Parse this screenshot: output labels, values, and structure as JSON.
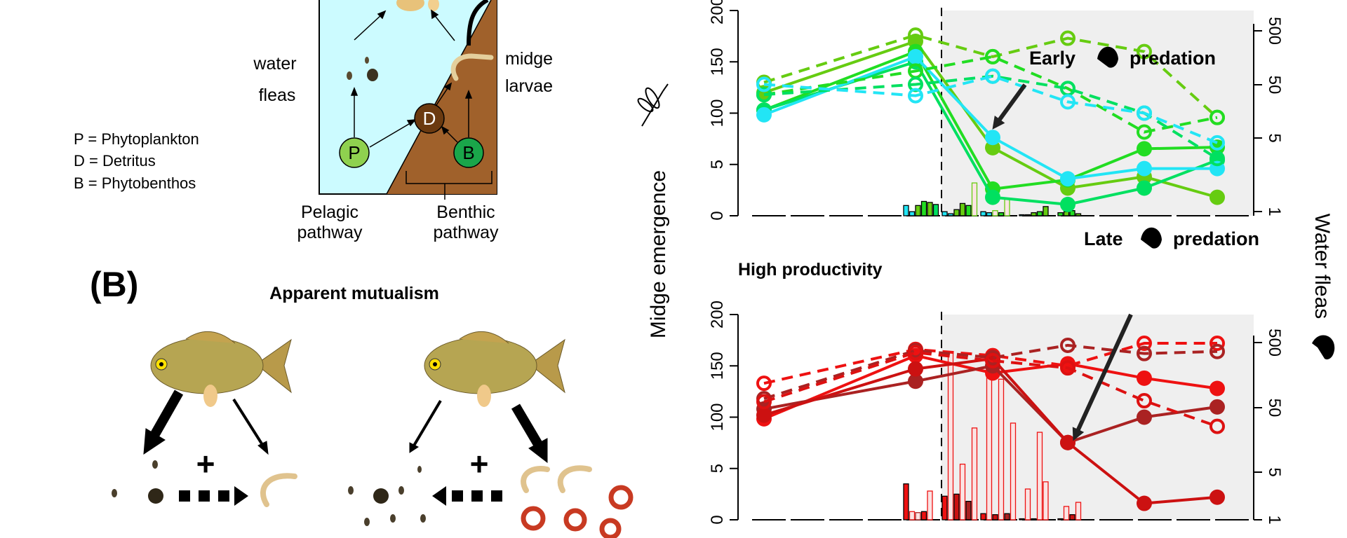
{
  "panel_a": {
    "water_fleas_label": [
      "water",
      "fleas"
    ],
    "midge_larvae_label": [
      "midge",
      "larvae"
    ],
    "legend": [
      "P = Phytoplankton",
      "D = Detritus",
      "B = Phytobenthos"
    ],
    "nodes": {
      "p": "P",
      "d": "D",
      "b": "B"
    },
    "node_colors": {
      "p": "#8fd14f",
      "d": "#6b3a10",
      "b": "#1aa64a"
    },
    "pelagic_label": [
      "Pelagic",
      "pathway"
    ],
    "benthic_label": [
      "Benthic",
      "pathway"
    ],
    "water_color": "#ccfbff",
    "sediment_color": "#a0612b"
  },
  "panel_b": {
    "label": "(B)",
    "title": "Apparent mutualism",
    "plus": "+"
  },
  "chart_data": [
    {
      "type": "line",
      "title": "",
      "ylabel": "Midge emergence",
      "y2label": "Water fleas",
      "yticks": [
        "0",
        "5",
        "100",
        "150",
        "200"
      ],
      "y2ticks": [
        "1",
        "5",
        "50",
        "500"
      ],
      "annotation": {
        "left": "Early",
        "right": "predation"
      },
      "shaded_period": "predation",
      "series": [
        {
          "color": "#66cc11",
          "style": "solid",
          "marker": "filled",
          "values": [
            120,
            170,
            36,
            2.7,
            3.8,
            1.8
          ]
        },
        {
          "color": "#22dd22",
          "style": "solid",
          "marker": "filled",
          "values": [
            103,
            160,
            2.6,
            3.5,
            34,
            37
          ]
        },
        {
          "color": "#00e060",
          "style": "solid",
          "marker": "filled",
          "values": [
            103,
            150,
            1.8,
            1.1,
            2.7,
            13
          ]
        },
        {
          "color": "#22e5f5",
          "style": "solid",
          "marker": "filled",
          "values": [
            97,
            155,
            55,
            3.6,
            4.6,
            4.6
          ]
        },
        {
          "color": "#66cc11",
          "style": "dashed",
          "marker": "open",
          "values": [
            130,
            176,
            155,
            173,
            160,
            92
          ]
        },
        {
          "color": "#22dd22",
          "style": "dashed",
          "marker": "open",
          "values": [
            118,
            141,
            155,
            124,
            65,
            92
          ]
        },
        {
          "color": "#00e060",
          "style": "dashed",
          "marker": "open",
          "values": [
            118,
            128,
            136,
            124,
            100,
            16
          ]
        },
        {
          "color": "#22e5f5",
          "style": "dashed",
          "marker": "open",
          "values": [
            128,
            117,
            136,
            111,
            100,
            45
          ]
        }
      ],
      "bars": [
        [
          {
            "v": 1.0,
            "c": "#22e5f5"
          },
          {
            "v": 0.4,
            "c": "#22e5f5"
          },
          {
            "v": 1.0,
            "c": "#66cc11"
          },
          {
            "v": 1.4,
            "c": "#22dd22"
          },
          {
            "v": 1.3,
            "c": "#66cc11"
          },
          {
            "v": 1.1,
            "c": "#00e060"
          }
        ],
        [
          {
            "v": 0.4,
            "c": "#22e5f5"
          },
          {
            "v": 0.2,
            "c": "#22e5f5"
          },
          {
            "v": 0.6,
            "c": "#66cc11"
          },
          {
            "v": 1.2,
            "c": "#66cc11"
          },
          {
            "v": 1.0,
            "c": "#22dd22"
          },
          {
            "v": 3.2,
            "c": "#66cc11",
            "hatched": true
          }
        ],
        [
          {
            "v": 0.4,
            "c": "#22e5f5"
          },
          {
            "v": 0.3,
            "c": "#22e5f5"
          },
          {
            "v": 0.5,
            "c": "#66cc11",
            "hatched": true
          },
          {
            "v": 0.3,
            "c": "#22dd22"
          },
          {
            "v": 1.6,
            "c": "#66cc11",
            "hatched": true
          }
        ],
        [
          {
            "v": 0.1,
            "c": "#22e5f5"
          },
          {
            "v": 0.1,
            "c": "#22dd22"
          },
          {
            "v": 0.3,
            "c": "#66cc11"
          },
          {
            "v": 0.4,
            "c": "#22dd22"
          },
          {
            "v": 0.9,
            "c": "#66cc11"
          }
        ],
        [
          {
            "v": 0.3,
            "c": "#22dd22"
          },
          {
            "v": 0.4,
            "c": "#66cc11"
          },
          {
            "v": 0.5,
            "c": "#22dd22"
          },
          {
            "v": 0.2,
            "c": "#66cc11"
          }
        ]
      ]
    },
    {
      "type": "line",
      "title": "High productivity",
      "ylabel": "Midge emergence",
      "y2label": "Water fleas",
      "yticks": [
        "0",
        "5",
        "100",
        "150",
        "200"
      ],
      "y2ticks": [
        "1",
        "5",
        "50",
        "500"
      ],
      "annotation": {
        "left": "Late",
        "right": "predation"
      },
      "shaded_period": "predation",
      "series": [
        {
          "color": "#ee1111",
          "style": "solid",
          "marker": "filled",
          "values": [
            97,
            160,
            143,
            152,
            138,
            128
          ]
        },
        {
          "color": "#aa2222",
          "style": "solid",
          "marker": "filled",
          "values": [
            108,
            135,
            150,
            53,
            100,
            110
          ]
        },
        {
          "color": "#cc1111",
          "style": "solid",
          "marker": "filled",
          "values": [
            102,
            147,
            157,
            53,
            1.6,
            2.2
          ]
        },
        {
          "color": "#ee1111",
          "style": "dashed",
          "marker": "open",
          "values": [
            133,
            166,
            160,
            150,
            172,
            172
          ]
        },
        {
          "color": "#aa2222",
          "style": "dashed",
          "marker": "open",
          "values": [
            118,
            165,
            158,
            170,
            162,
            164
          ]
        },
        {
          "color": "#dd1111",
          "style": "dashed",
          "marker": "open",
          "values": [
            115,
            163,
            155,
            148,
            116,
            83
          ]
        }
      ],
      "bars": [
        [
          {
            "v": 3.5,
            "c": "#ee1111"
          },
          {
            "v": 0.8,
            "c": "#ee1111",
            "hatched": true
          },
          {
            "v": 0.7,
            "c": "#aa2222",
            "hatched": true
          },
          {
            "v": 0.8,
            "c": "#ee1111"
          },
          {
            "v": 2.8,
            "c": "#ee1111",
            "hatched": true
          }
        ],
        [
          {
            "v": 2.3,
            "c": "#ee1111"
          },
          {
            "v": 164,
            "c": "#ee1111",
            "hatched": true
          },
          {
            "v": 2.5,
            "c": "#cc1111"
          },
          {
            "v": 13,
            "c": "#ee1111",
            "hatched": true
          },
          {
            "v": 1.8,
            "c": "#aa2222"
          },
          {
            "v": 80,
            "c": "#ee1111",
            "hatched": true
          }
        ],
        [
          {
            "v": 0.6,
            "c": "#ee1111"
          },
          {
            "v": 160,
            "c": "#ee1111",
            "hatched": true
          },
          {
            "v": 0.5,
            "c": "#cc1111"
          },
          {
            "v": 137,
            "c": "#ee1111",
            "hatched": true
          },
          {
            "v": 0.6,
            "c": "#aa2222"
          },
          {
            "v": 89,
            "c": "#ee1111",
            "hatched": true
          }
        ],
        [
          {
            "v": 0.1,
            "c": "#ee1111"
          },
          {
            "v": 3.0,
            "c": "#ee1111",
            "hatched": true
          },
          {
            "v": 0.1,
            "c": "#cc1111"
          },
          {
            "v": 72,
            "c": "#ee1111",
            "hatched": true
          },
          {
            "v": 3.7,
            "c": "#ee1111",
            "hatched": true
          }
        ],
        [
          {
            "v": 0.1,
            "c": "#ee1111"
          },
          {
            "v": 1.3,
            "c": "#ee1111",
            "hatched": true
          },
          {
            "v": 0.5,
            "c": "#cc1111"
          },
          {
            "v": 1.7,
            "c": "#ee1111",
            "hatched": true
          }
        ]
      ]
    }
  ],
  "shade_color": "#efefef"
}
